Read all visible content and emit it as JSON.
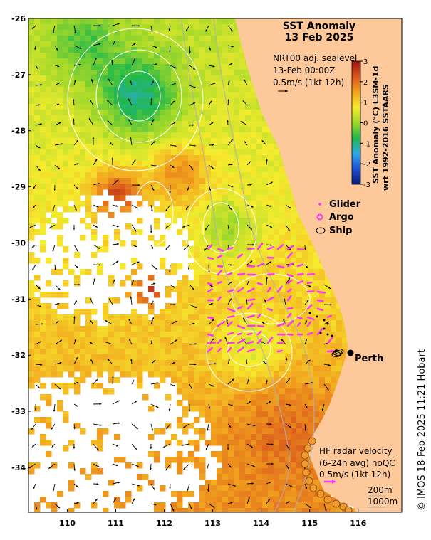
{
  "title": {
    "line1": "SST Anomaly",
    "line2": "13 Feb 2025"
  },
  "sea_level_box": {
    "line1": "NRT00 adj. sealevel",
    "line2": "13-Feb 00:00Z",
    "line3": "0.5m/s (1kt 12h)"
  },
  "colorbar": {
    "label_line1": "SST Anomaly (°C) L3SM-1d",
    "label_line2": "wrt 1992-2016 SSTAARS",
    "ticks": [
      "3",
      "2",
      "1",
      "0",
      "-1",
      "-2",
      "-3"
    ],
    "vmin": -3,
    "vmax": 3,
    "colors": [
      "#0a1a7a",
      "#1f4fd4",
      "#2fa8e8",
      "#1fb84a",
      "#9fd82a",
      "#f6ec2e",
      "#f2a21e",
      "#d9561c",
      "#9a1410"
    ]
  },
  "legend": {
    "glider": "Glider",
    "argo": "Argo",
    "ship": "Ship",
    "glider_color": "#ff33ff",
    "argo_color": "#ff33ff",
    "ship_color": "#000000"
  },
  "place": {
    "city": "Perth"
  },
  "hf_radar": {
    "line1": "HF radar velocity",
    "line2": "(6-24h avg) noQC",
    "line3": "0.5m/s (1kt 12h)"
  },
  "depth_legend": {
    "d200": "200m",
    "d1000": "1000m"
  },
  "credit": "© IMOS 18-Feb-2025 11:21 Hobart",
  "axes": {
    "x_ticks": [
      "110",
      "111",
      "112",
      "113",
      "114",
      "115",
      "116"
    ],
    "y_ticks": [
      "-26",
      "-27",
      "-28",
      "-29",
      "-30",
      "-31",
      "-32",
      "-33",
      "-34"
    ]
  },
  "colors": {
    "land": "#fdc89a",
    "no_data": "#ffffff",
    "arrow": "#000000",
    "contour": "#ffffff",
    "bathymetry": "#b0b0b0"
  }
}
